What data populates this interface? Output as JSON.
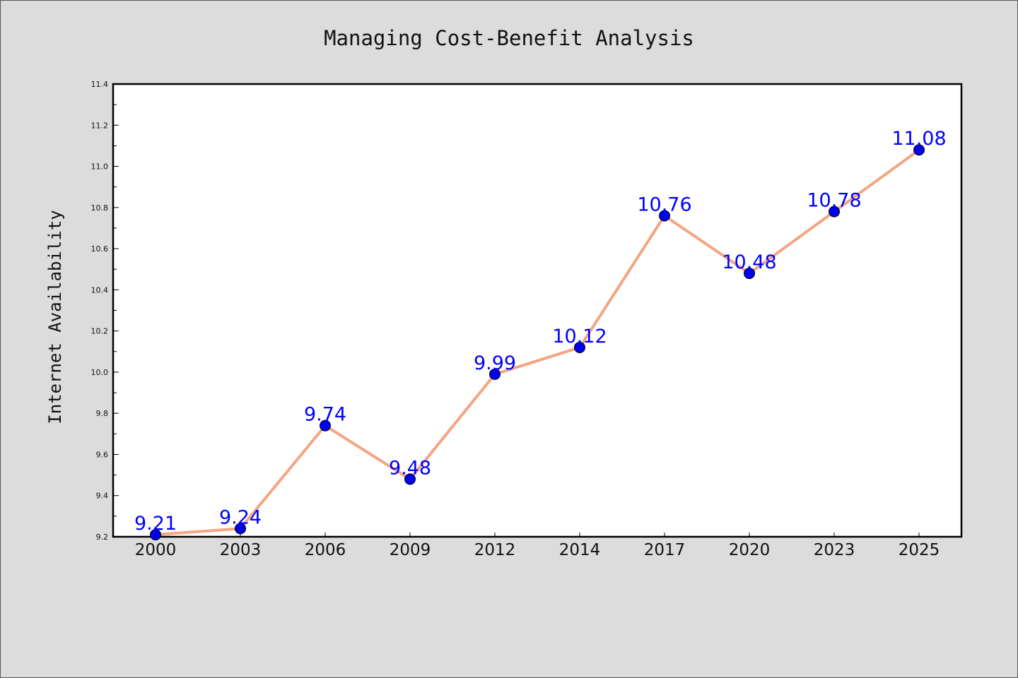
{
  "chart_data": {
    "type": "line",
    "title": "Managing Cost-Benefit Analysis",
    "xlabel": "",
    "ylabel": "Internet Availability",
    "categories": [
      "2000",
      "2003",
      "2006",
      "2009",
      "2012",
      "2014",
      "2017",
      "2020",
      "2023",
      "2025"
    ],
    "series": [
      {
        "values": [
          9.21,
          9.24,
          9.74,
          9.48,
          9.99,
          10.12,
          10.76,
          10.48,
          10.78,
          11.08
        ],
        "labels": [
          "9.21",
          "9.24",
          "9.74",
          "9.48",
          "9.99",
          "10.12",
          "10.76",
          "10.48",
          "10.78",
          "11.08"
        ],
        "line_color": "#f4a582",
        "marker_color": "#0000ee",
        "label_color": "#0000ff"
      }
    ],
    "ylim": [
      9.2,
      11.4
    ],
    "yticks": [
      "9.2",
      "9.4",
      "9.6",
      "9.8",
      "10.0",
      "10.2",
      "10.4",
      "10.6",
      "10.8",
      "11.0",
      "11.2",
      "11.4"
    ],
    "grid": false,
    "legend": "none"
  }
}
